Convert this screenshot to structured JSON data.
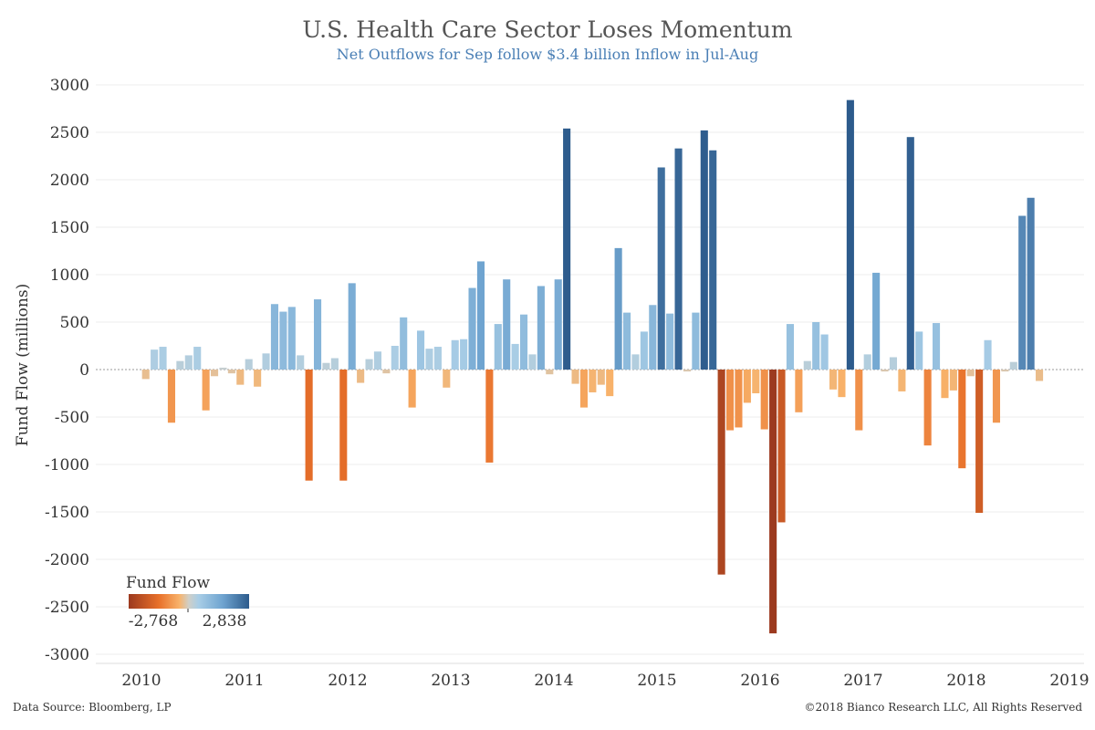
{
  "header": {
    "title": "U.S. Health Care Sector Loses Momentum",
    "subtitle": "Net Outflows for Sep follow $3.4 billion Inflow in Jul-Aug"
  },
  "footer": {
    "source": "Data Source: Bloomberg, LP",
    "copyright": "©2018 Bianco Research LLC, All Rights Reserved"
  },
  "legend": {
    "title": "Fund Flow",
    "min_label": "-2,768",
    "max_label": "2,838"
  },
  "colors": {
    "neg_dark": "#9c3a1f",
    "neg_mid": "#e8702a",
    "neg_light": "#f8b26a",
    "neutral": "#cfcfc8",
    "pos_light": "#a8cde6",
    "pos_mid": "#6fa4d0",
    "pos_dark": "#2d5b8c"
  },
  "chart_data": {
    "type": "bar",
    "title": "U.S. Health Care Sector Loses Momentum",
    "subtitle": "Net Outflows for Sep follow $3.4 billion Inflow in Jul-Aug",
    "ylabel": "Fund Flow (millions)",
    "xlabel": "",
    "ylim": [
      -3000,
      3000
    ],
    "yticks": [
      3000,
      2500,
      2000,
      1500,
      1000,
      500,
      0,
      -500,
      -1000,
      -1500,
      -2000,
      -2500,
      -3000
    ],
    "xticks": [
      "2010",
      "2011",
      "2012",
      "2013",
      "2014",
      "2015",
      "2016",
      "2017",
      "2018",
      "2019"
    ],
    "x_start": "2010-01",
    "frequency": "monthly",
    "color_scale": {
      "min": -2768,
      "max": 2838
    },
    "grid": true,
    "legend_position": "bottom-left",
    "values": [
      -100,
      210,
      240,
      -560,
      90,
      150,
      240,
      -430,
      -70,
      20,
      -40,
      -160,
      110,
      -180,
      170,
      690,
      610,
      660,
      150,
      -1170,
      740,
      70,
      120,
      -1170,
      910,
      -140,
      110,
      190,
      -40,
      250,
      550,
      -400,
      410,
      220,
      240,
      -190,
      310,
      320,
      860,
      1140,
      -980,
      480,
      950,
      270,
      580,
      160,
      880,
      -50,
      950,
      2540,
      -150,
      -400,
      -240,
      -160,
      -280,
      1280,
      600,
      160,
      400,
      680,
      2130,
      590,
      2330,
      -20,
      600,
      2520,
      2310,
      -2160,
      -640,
      -610,
      -350,
      -250,
      -630,
      -2780,
      -1610,
      480,
      -450,
      90,
      500,
      370,
      -210,
      -290,
      2840,
      -640,
      160,
      1020,
      -20,
      130,
      -230,
      2450,
      400,
      -800,
      490,
      -300,
      -220,
      -1040,
      -70,
      -1510,
      310,
      -560,
      -20,
      80,
      1620,
      1810,
      -120
    ]
  }
}
